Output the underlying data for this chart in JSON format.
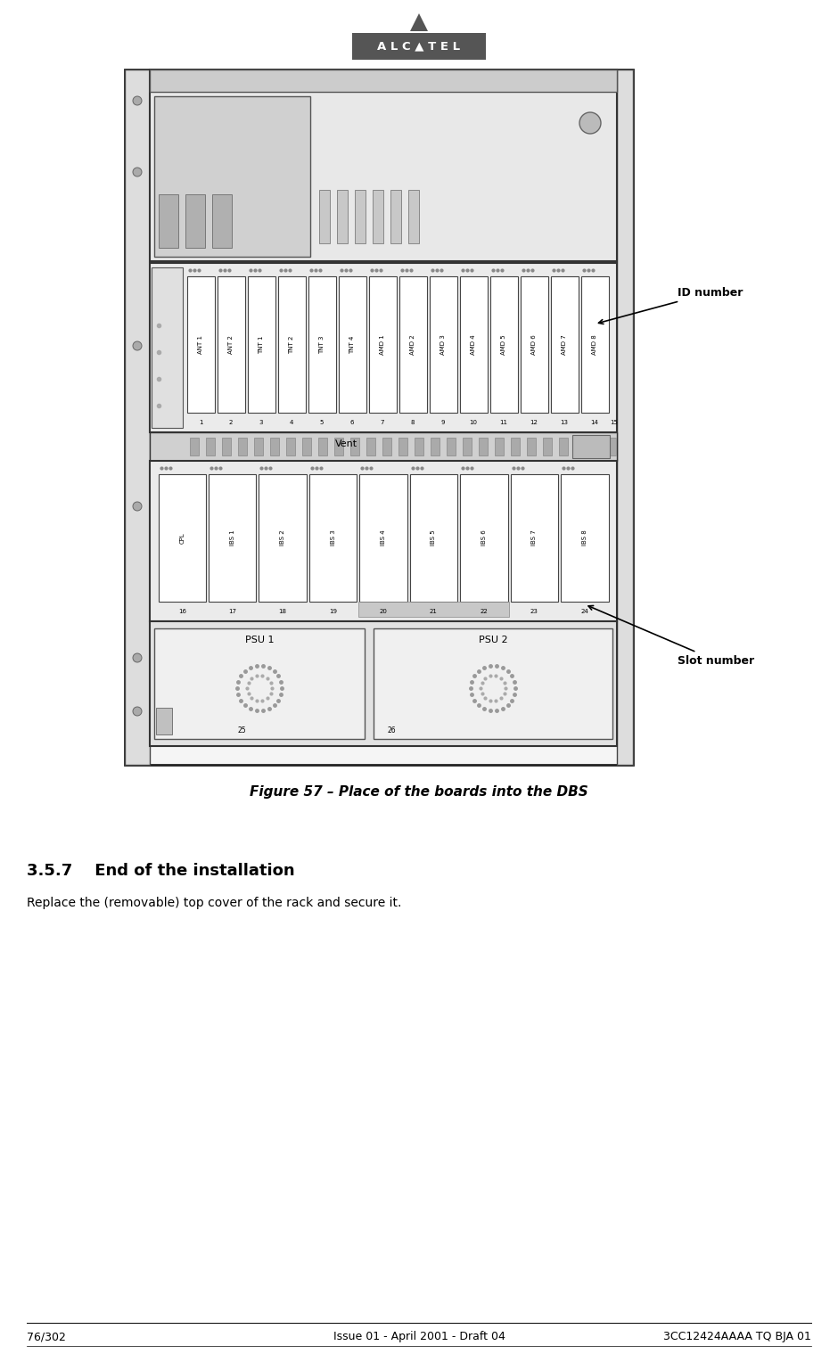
{
  "page_width": 9.4,
  "page_height": 15.28,
  "bg_color": "#ffffff",
  "header": {
    "alcatel_box_color": "#555555",
    "alcatel_text": "A L C ▲ T E L",
    "alcatel_text_color": "#ffffff",
    "triangle_color": "#555555"
  },
  "figure_caption": "Figure 57 – Place of the boards into the DBS",
  "section_title": "3.5.7    End of the installation",
  "section_text": "Replace the (removable) top cover of the rack and secure it.",
  "footer_left": "76/302",
  "footer_center": "Issue 01 - April 2001 - Draft 04",
  "footer_right": "3CC12424AAAA TQ BJA 01",
  "top_row_labels": [
    "ANT 1",
    "ANT 2",
    "TNT 1",
    "TNT 2",
    "TNT 3",
    "TNT 4",
    "AMD 1",
    "AMD 2",
    "AMD 3",
    "AMD 4",
    "AMD 5",
    "AMD 6",
    "AMD 7",
    "AMD 8"
  ],
  "top_row_numbers": [
    "1",
    "2",
    "3",
    "4",
    "5",
    "6",
    "7",
    "8",
    "9",
    "10",
    "11",
    "12",
    "13",
    "14"
  ],
  "bottom_row_labels": [
    "CPL",
    "IBS 1",
    "IBS 2",
    "IBS 3",
    "IBS 4",
    "IBS 5",
    "IBS 6",
    "IBS 7",
    "IBS 8"
  ],
  "bottom_row_numbers": [
    "16",
    "17",
    "18",
    "19",
    "20",
    "21",
    "22",
    "23",
    "24"
  ],
  "psu_labels": [
    "PSU 1",
    "PSU 2"
  ],
  "psu_numbers": [
    "25",
    "26"
  ],
  "vent_label": "Vent",
  "vent_number": "15",
  "id_label": "ID number",
  "slot_label": "Slot number"
}
